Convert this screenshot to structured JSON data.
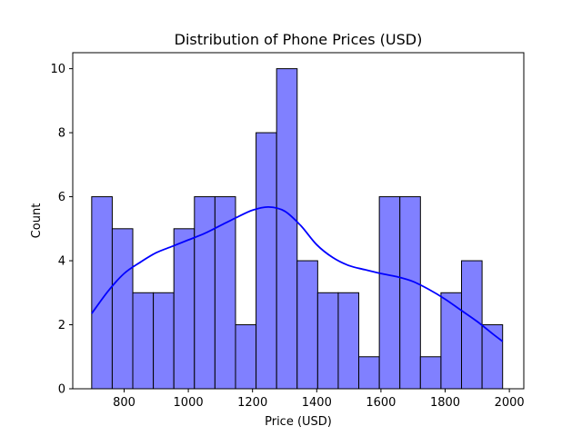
{
  "chart_data": {
    "type": "bar",
    "title": "Distribution of Phone Prices (USD)",
    "xlabel": "Price (USD)",
    "ylabel": "Count",
    "xlim": [
      640,
      2045
    ],
    "ylim": [
      0,
      10.5
    ],
    "xticks": [
      800,
      1000,
      1200,
      1400,
      1600,
      1800,
      2000
    ],
    "yticks": [
      0,
      2,
      4,
      6,
      8,
      10
    ],
    "grid": false,
    "legend": "none",
    "bar_color": "#8080ff",
    "bar_edge_color": "#000000",
    "kde_color": "#0000ff",
    "bins": [
      {
        "start": 699,
        "end": 763,
        "count": 6
      },
      {
        "start": 763,
        "end": 827,
        "count": 5
      },
      {
        "start": 827,
        "end": 891,
        "count": 3
      },
      {
        "start": 891,
        "end": 955,
        "count": 3
      },
      {
        "start": 955,
        "end": 1019,
        "count": 5
      },
      {
        "start": 1019,
        "end": 1083,
        "count": 6
      },
      {
        "start": 1083,
        "end": 1147,
        "count": 6
      },
      {
        "start": 1147,
        "end": 1211,
        "count": 2
      },
      {
        "start": 1211,
        "end": 1275,
        "count": 8
      },
      {
        "start": 1275,
        "end": 1339,
        "count": 10
      },
      {
        "start": 1339,
        "end": 1403,
        "count": 4
      },
      {
        "start": 1403,
        "end": 1467,
        "count": 3
      },
      {
        "start": 1467,
        "end": 1531,
        "count": 3
      },
      {
        "start": 1531,
        "end": 1595,
        "count": 1
      },
      {
        "start": 1595,
        "end": 1659,
        "count": 6
      },
      {
        "start": 1659,
        "end": 1723,
        "count": 6
      },
      {
        "start": 1723,
        "end": 1787,
        "count": 1
      },
      {
        "start": 1787,
        "end": 1851,
        "count": 3
      },
      {
        "start": 1851,
        "end": 1915,
        "count": 4
      },
      {
        "start": 1915,
        "end": 1979,
        "count": 2
      }
    ],
    "kde": {
      "x": [
        699,
        750,
        800,
        850,
        900,
        950,
        1000,
        1050,
        1100,
        1150,
        1200,
        1250,
        1300,
        1350,
        1400,
        1450,
        1500,
        1550,
        1600,
        1650,
        1700,
        1750,
        1800,
        1850,
        1900,
        1950,
        1979
      ],
      "y": [
        2.35,
        3.05,
        3.6,
        3.95,
        4.25,
        4.45,
        4.65,
        4.85,
        5.1,
        5.35,
        5.58,
        5.68,
        5.55,
        5.1,
        4.5,
        4.1,
        3.85,
        3.72,
        3.6,
        3.5,
        3.35,
        3.1,
        2.8,
        2.45,
        2.1,
        1.7,
        1.48
      ]
    }
  }
}
